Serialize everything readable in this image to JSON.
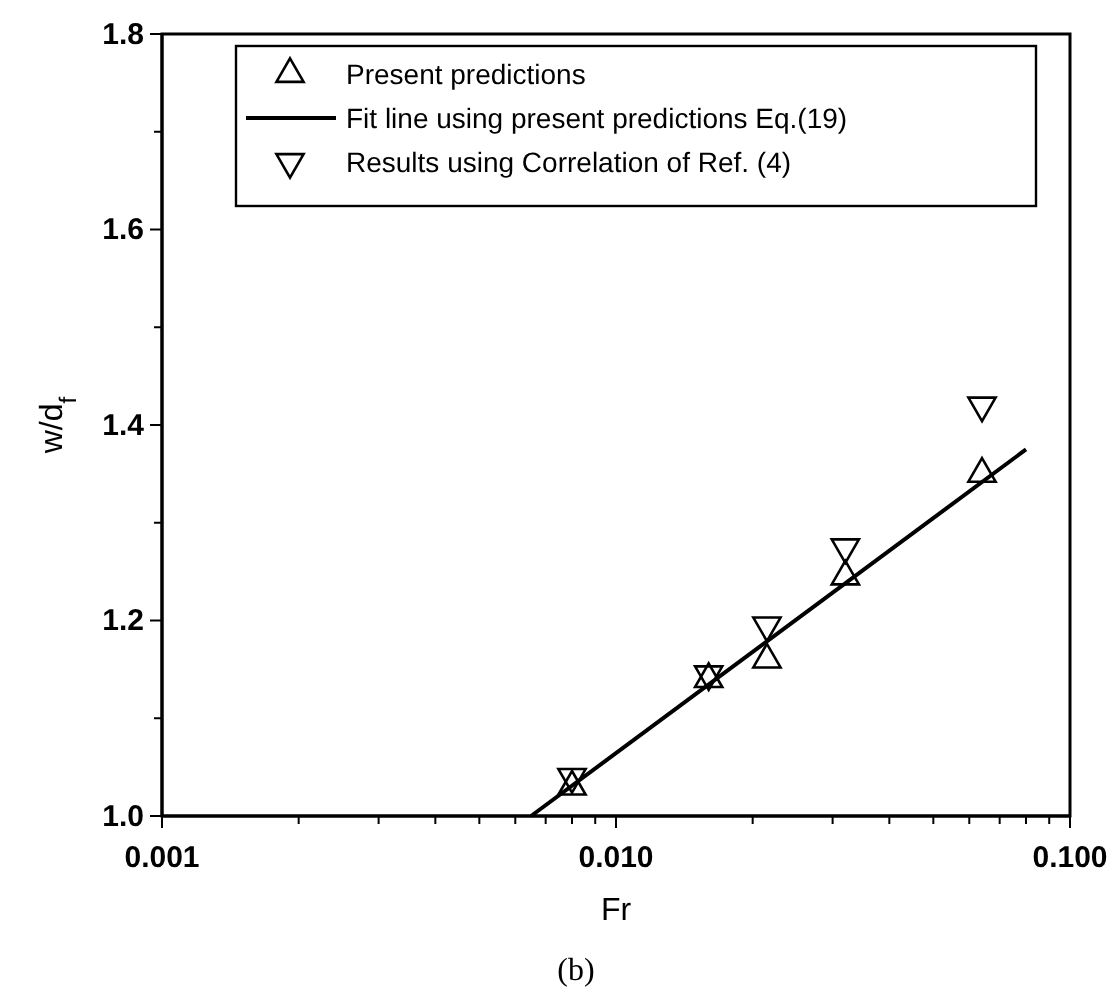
{
  "chart_data": {
    "type": "scatter",
    "log": "x",
    "xlabel": "Fr",
    "ylabel": "w/d$_{f}$",
    "xlim": [
      0.001,
      0.1
    ],
    "ylim": [
      1.0,
      1.8
    ],
    "xticks": [
      {
        "value": 0.001,
        "label": "0.001"
      },
      {
        "value": 0.002,
        "label": null
      },
      {
        "value": 0.003,
        "label": null
      },
      {
        "value": 0.004,
        "label": null
      },
      {
        "value": 0.005,
        "label": null
      },
      {
        "value": 0.006,
        "label": null
      },
      {
        "value": 0.007,
        "label": null
      },
      {
        "value": 0.008,
        "label": null
      },
      {
        "value": 0.009,
        "label": null
      },
      {
        "value": 0.01,
        "label": "0.010"
      },
      {
        "value": 0.02,
        "label": null
      },
      {
        "value": 0.03,
        "label": null
      },
      {
        "value": 0.04,
        "label": null
      },
      {
        "value": 0.05,
        "label": null
      },
      {
        "value": 0.06,
        "label": null
      },
      {
        "value": 0.07,
        "label": null
      },
      {
        "value": 0.08,
        "label": null
      },
      {
        "value": 0.09,
        "label": null
      },
      {
        "value": 0.1,
        "label": "0.100"
      }
    ],
    "yticks": [
      {
        "value": 1.0,
        "label": "1.0"
      },
      {
        "value": 1.1,
        "label": null
      },
      {
        "value": 1.2,
        "label": "1.2"
      },
      {
        "value": 1.3,
        "label": null
      },
      {
        "value": 1.4,
        "label": "1.4"
      },
      {
        "value": 1.5,
        "label": null
      },
      {
        "value": 1.6,
        "label": "1.6"
      },
      {
        "value": 1.7,
        "label": null
      },
      {
        "value": 1.8,
        "label": "1.8"
      }
    ],
    "legend": "top",
    "grid": false,
    "series": [
      {
        "name": "Present predictions",
        "marker": "triangle",
        "color": "#000000",
        "x": [
          0.008,
          0.016,
          0.0215,
          0.032,
          0.064
        ],
        "values": [
          1.03,
          1.14,
          1.16,
          1.245,
          1.35
        ]
      },
      {
        "name": "Fit line using present predictions Eq.(19)",
        "type": "line",
        "marker": "none",
        "color": "#000000",
        "x": [
          0.0065,
          0.08
        ],
        "values": [
          1.0,
          1.375
        ]
      },
      {
        "name": "Results using Correlation of Ref. (4)",
        "marker": "triangle-down",
        "color": "#000000",
        "x": [
          0.008,
          0.016,
          0.0215,
          0.032,
          0.064
        ],
        "values": [
          1.04,
          1.145,
          1.195,
          1.275,
          1.42
        ]
      }
    ],
    "annotations": [
      "(b)"
    ]
  }
}
